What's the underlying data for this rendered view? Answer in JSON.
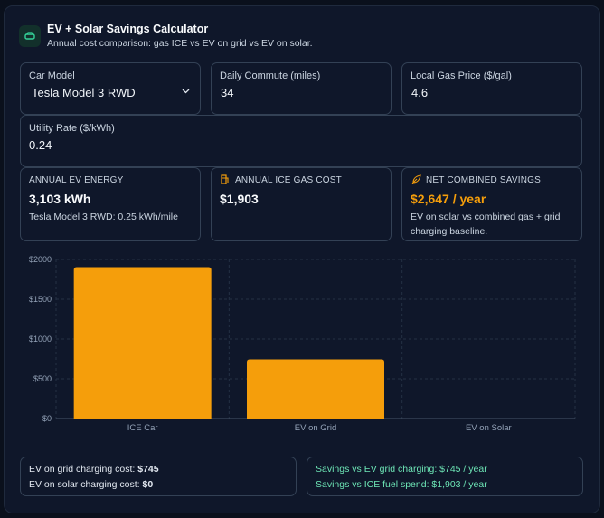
{
  "header": {
    "title": "EV + Solar Savings Calculator",
    "subtitle": "Annual cost comparison: gas ICE vs EV on grid vs EV on solar.",
    "icon": "car-icon"
  },
  "inputs": {
    "car_model": {
      "label": "Car Model",
      "value": "Tesla Model 3 RWD"
    },
    "commute": {
      "label": "Daily Commute (miles)",
      "value": "34"
    },
    "gas_price": {
      "label": "Local Gas Price ($/gal)",
      "value": "4.6"
    },
    "utility_rate": {
      "label": "Utility Rate ($/kWh)",
      "value": "0.24"
    }
  },
  "stats": {
    "ev_energy": {
      "label": "ANNUAL EV ENERGY",
      "value": "3,103 kWh",
      "note": "Tesla Model 3 RWD: 0.25 kWh/mile"
    },
    "ice_cost": {
      "label": "ANNUAL ICE GAS COST",
      "value": "$1,903",
      "icon": "fuel-pump-icon"
    },
    "net_savings": {
      "label": "NET COMBINED SAVINGS",
      "value": "$2,647 / year",
      "note": "EV on solar vs combined gas + grid charging baseline.",
      "icon": "leaf-icon"
    }
  },
  "colors": {
    "accent": "#f59e0b",
    "green": "#6ee7b7",
    "bar": "#f59e0b"
  },
  "chart_data": {
    "type": "bar",
    "categories": [
      "ICE Car",
      "EV on Grid",
      "EV on Solar"
    ],
    "values": [
      1903,
      745,
      0
    ],
    "ylim": [
      0,
      2000
    ],
    "yticks": [
      0,
      500,
      1000,
      1500,
      2000
    ],
    "ytick_labels": [
      "$0",
      "$500",
      "$1000",
      "$1500",
      "$2000"
    ],
    "grid": true
  },
  "summary": {
    "grid_cost_label": "EV on grid charging cost:",
    "grid_cost_value": "$745",
    "solar_cost_label": "EV on solar charging cost:",
    "solar_cost_value": "$0",
    "savings_grid": "Savings vs EV grid charging: $745 / year",
    "savings_ice": "Savings vs ICE fuel spend: $1,903 / year"
  }
}
